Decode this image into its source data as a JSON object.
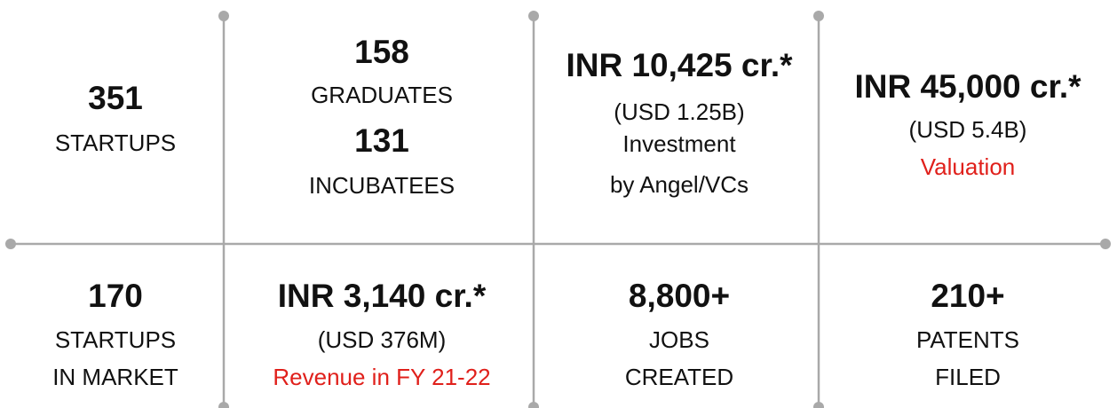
{
  "cells": [
    {
      "lines": [
        "351",
        "STARTUPS"
      ]
    },
    {
      "lines": [
        "158",
        "GRADUATES",
        "131",
        "INCUBATEES"
      ]
    },
    {
      "lines": [
        "INR 10,425 cr.*",
        "(USD 1.25B)",
        "Investment",
        "by Angel/VCs"
      ]
    },
    {
      "lines": [
        "INR 45,000 cr.*",
        "(USD 5.4B)",
        "Valuation"
      ]
    },
    {
      "lines": [
        "170",
        "STARTUPS",
        "IN MARKET"
      ]
    },
    {
      "lines": [
        "INR 3,140 cr.*",
        "(USD 376M)",
        "Revenue in FY 21-22"
      ]
    },
    {
      "lines": [
        "8,800+",
        "JOBS",
        "CREATED"
      ]
    },
    {
      "lines": [
        "210+",
        "PATENTS",
        "FILED"
      ]
    }
  ]
}
